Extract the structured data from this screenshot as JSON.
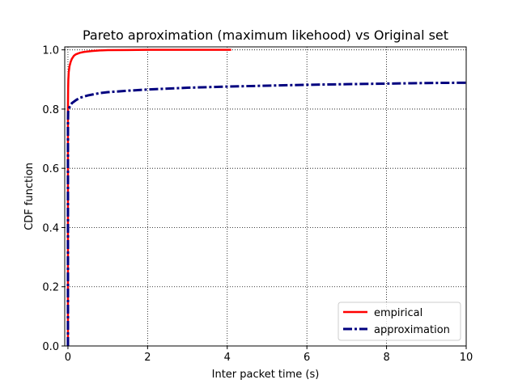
{
  "chart_data": {
    "type": "line",
    "title": "Pareto aproximation (maximum likehood) vs Original set",
    "xlabel": "Inter packet time (s)",
    "ylabel": "CDF function",
    "xlim": [
      -0.08,
      10
    ],
    "ylim": [
      0,
      1.01
    ],
    "xticks": [
      0,
      2,
      4,
      6,
      8,
      10
    ],
    "yticks": [
      0.0,
      0.2,
      0.4,
      0.6,
      0.8,
      1.0
    ],
    "xtick_labels": [
      "0",
      "2",
      "4",
      "6",
      "8",
      "10"
    ],
    "ytick_labels": [
      "0.0",
      "0.2",
      "0.4",
      "0.6",
      "0.8",
      "1.0"
    ],
    "grid": true,
    "grid_style": "dotted",
    "legend_position": "lower-right",
    "series": [
      {
        "name": "empirical",
        "color": "#ff0000",
        "linestyle": "solid",
        "x": [
          0.0,
          0.0,
          0.005,
          0.01,
          0.02,
          0.04,
          0.07,
          0.1,
          0.15,
          0.2,
          0.3,
          0.4,
          0.6,
          0.8,
          1.0,
          1.5,
          2.0,
          3.0,
          4.1
        ],
        "y": [
          0.0,
          0.8,
          0.87,
          0.9,
          0.925,
          0.945,
          0.96,
          0.97,
          0.98,
          0.985,
          0.99,
          0.993,
          0.996,
          0.998,
          0.999,
          0.9995,
          1.0,
          1.0,
          1.0
        ]
      },
      {
        "name": "approximation",
        "color": "#00007f",
        "linestyle": "dashdot",
        "x": [
          0.0,
          0.0,
          0.005,
          0.02,
          0.05,
          0.1,
          0.2,
          0.3,
          0.5,
          0.8,
          1.0,
          1.5,
          2.0,
          3.0,
          4.0,
          5.0,
          6.0,
          7.0,
          8.0,
          9.0,
          10.0
        ],
        "y": [
          0.0,
          0.75,
          0.79,
          0.8,
          0.81,
          0.82,
          0.83,
          0.838,
          0.846,
          0.854,
          0.857,
          0.862,
          0.866,
          0.872,
          0.876,
          0.879,
          0.882,
          0.884,
          0.886,
          0.888,
          0.889
        ]
      }
    ]
  }
}
